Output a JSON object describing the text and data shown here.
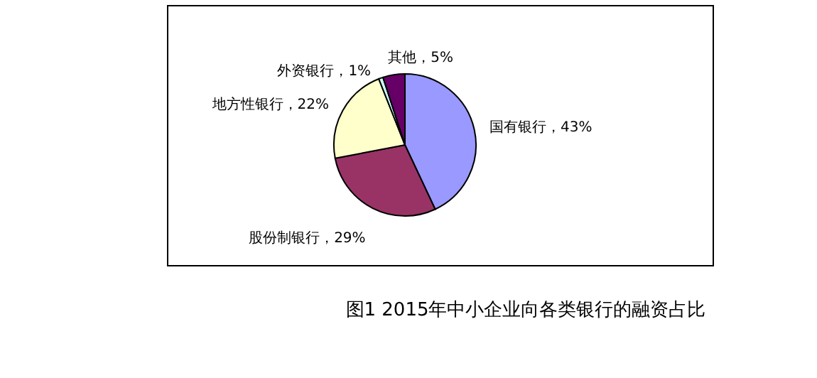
{
  "chart_data": {
    "type": "pie",
    "title": "图1 2015年中小企业向各类银行的融资占比",
    "categories": [
      "国有银行",
      "股份制银行",
      "地方性银行",
      "外资银行",
      "其他"
    ],
    "values": [
      43,
      29,
      22,
      1,
      5
    ],
    "value_labels": [
      "，43%",
      "，29%",
      "，22%",
      "，1%",
      "，5%"
    ],
    "colors": [
      "#9999ff",
      "#993366",
      "#ffffcc",
      "#ccffff",
      "#660066"
    ]
  }
}
